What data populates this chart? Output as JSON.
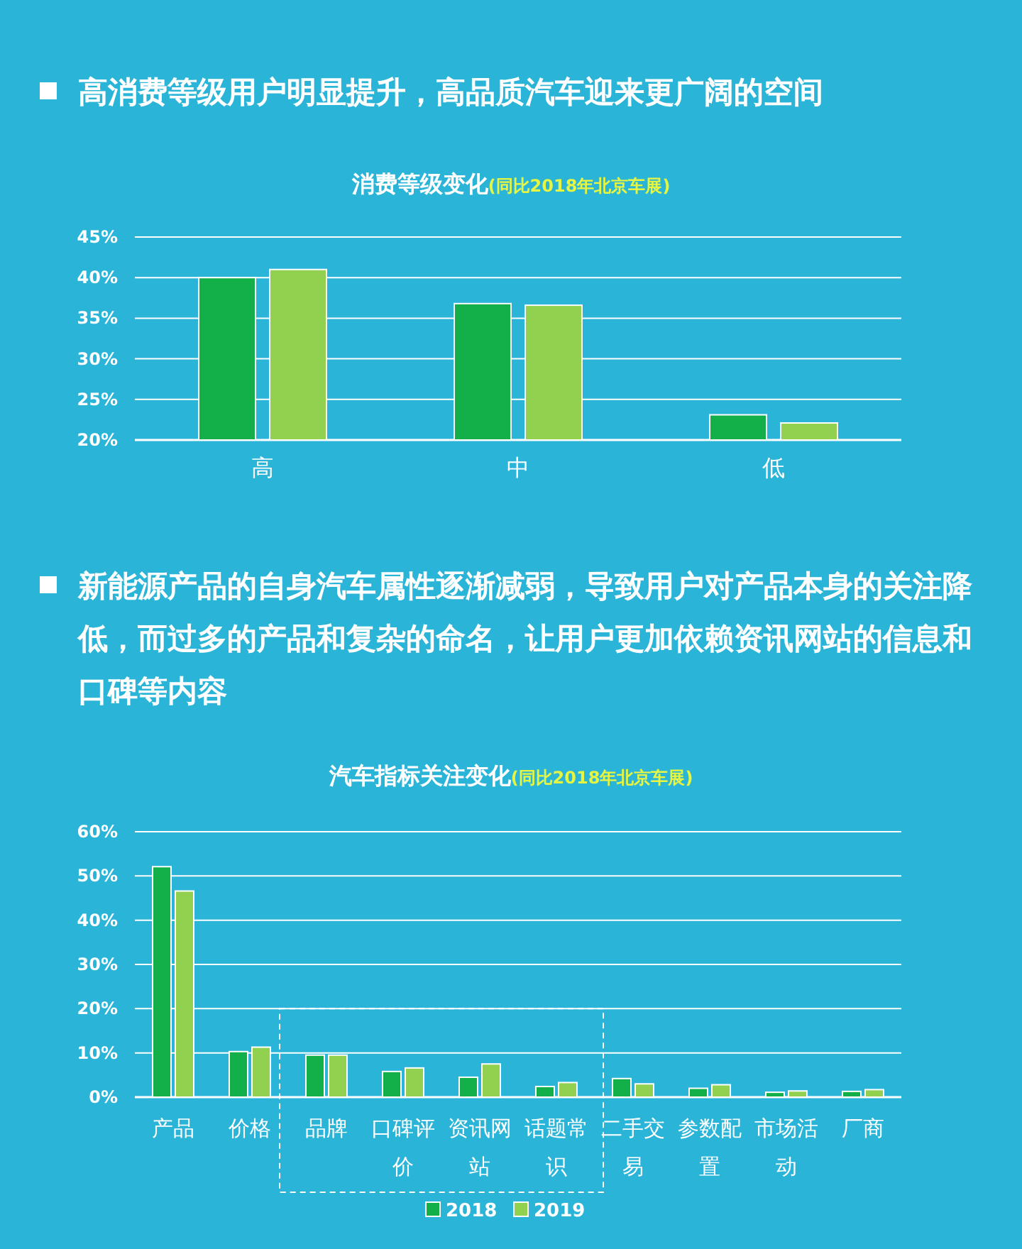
{
  "chart_data": [
    {
      "type": "bar",
      "title": "消费等级变化",
      "subtitle": "(同比2018年北京车展)",
      "annotations": [
        "高消费等级用户明显提升，高品质汽车迎来更广阔的空间"
      ],
      "categories": [
        "高",
        "中",
        "低"
      ],
      "series": [
        {
          "color": "#13b04a",
          "values": [
            40,
            36.8,
            23.1
          ]
        },
        {
          "color": "#92d050",
          "values": [
            41,
            36.6,
            22.1
          ]
        }
      ],
      "ylim": [
        20,
        45
      ],
      "yticks": [
        {
          "value": 20,
          "label": "20%"
        },
        {
          "value": 25,
          "label": "25%"
        },
        {
          "value": 30,
          "label": "30%"
        },
        {
          "value": 35,
          "label": "35%"
        },
        {
          "value": 40,
          "label": "40%"
        },
        {
          "value": 45,
          "label": "45%"
        }
      ],
      "grid": "y",
      "legend": false
    },
    {
      "type": "bar",
      "title": "汽车指标关注变化",
      "subtitle": "(同比2018年北京车展)",
      "annotations": [
        "新能源产品的自身汽车属性逐渐减弱，导致用户对产品本身的关注降低，而过多的产品和复杂的命名，让用户更加依赖资讯网站的信息和口碑等内容"
      ],
      "categories": [
        "产品",
        "价格",
        "品牌",
        "口碑评价",
        "资讯网站",
        "话题常识",
        "二手交易",
        "参数配置",
        "市场活动",
        "厂商"
      ],
      "series": [
        {
          "name": "2018",
          "color": "#13b04a",
          "values": [
            52.1,
            10.3,
            9.5,
            5.8,
            4.5,
            2.4,
            4.2,
            2.0,
            1.1,
            1.3
          ]
        },
        {
          "name": "2019",
          "color": "#92d050",
          "values": [
            46.6,
            11.3,
            9.5,
            6.6,
            7.5,
            3.3,
            3.0,
            2.8,
            1.4,
            1.7
          ]
        }
      ],
      "ylim": [
        0,
        60
      ],
      "yticks": [
        {
          "value": 0,
          "label": "0%"
        },
        {
          "value": 10,
          "label": "10%"
        },
        {
          "value": 20,
          "label": "20%"
        },
        {
          "value": 30,
          "label": "30%"
        },
        {
          "value": 40,
          "label": "40%"
        },
        {
          "value": 50,
          "label": "50%"
        },
        {
          "value": 60,
          "label": "60%"
        }
      ],
      "grid": "y",
      "legend": "bottom"
    }
  ]
}
